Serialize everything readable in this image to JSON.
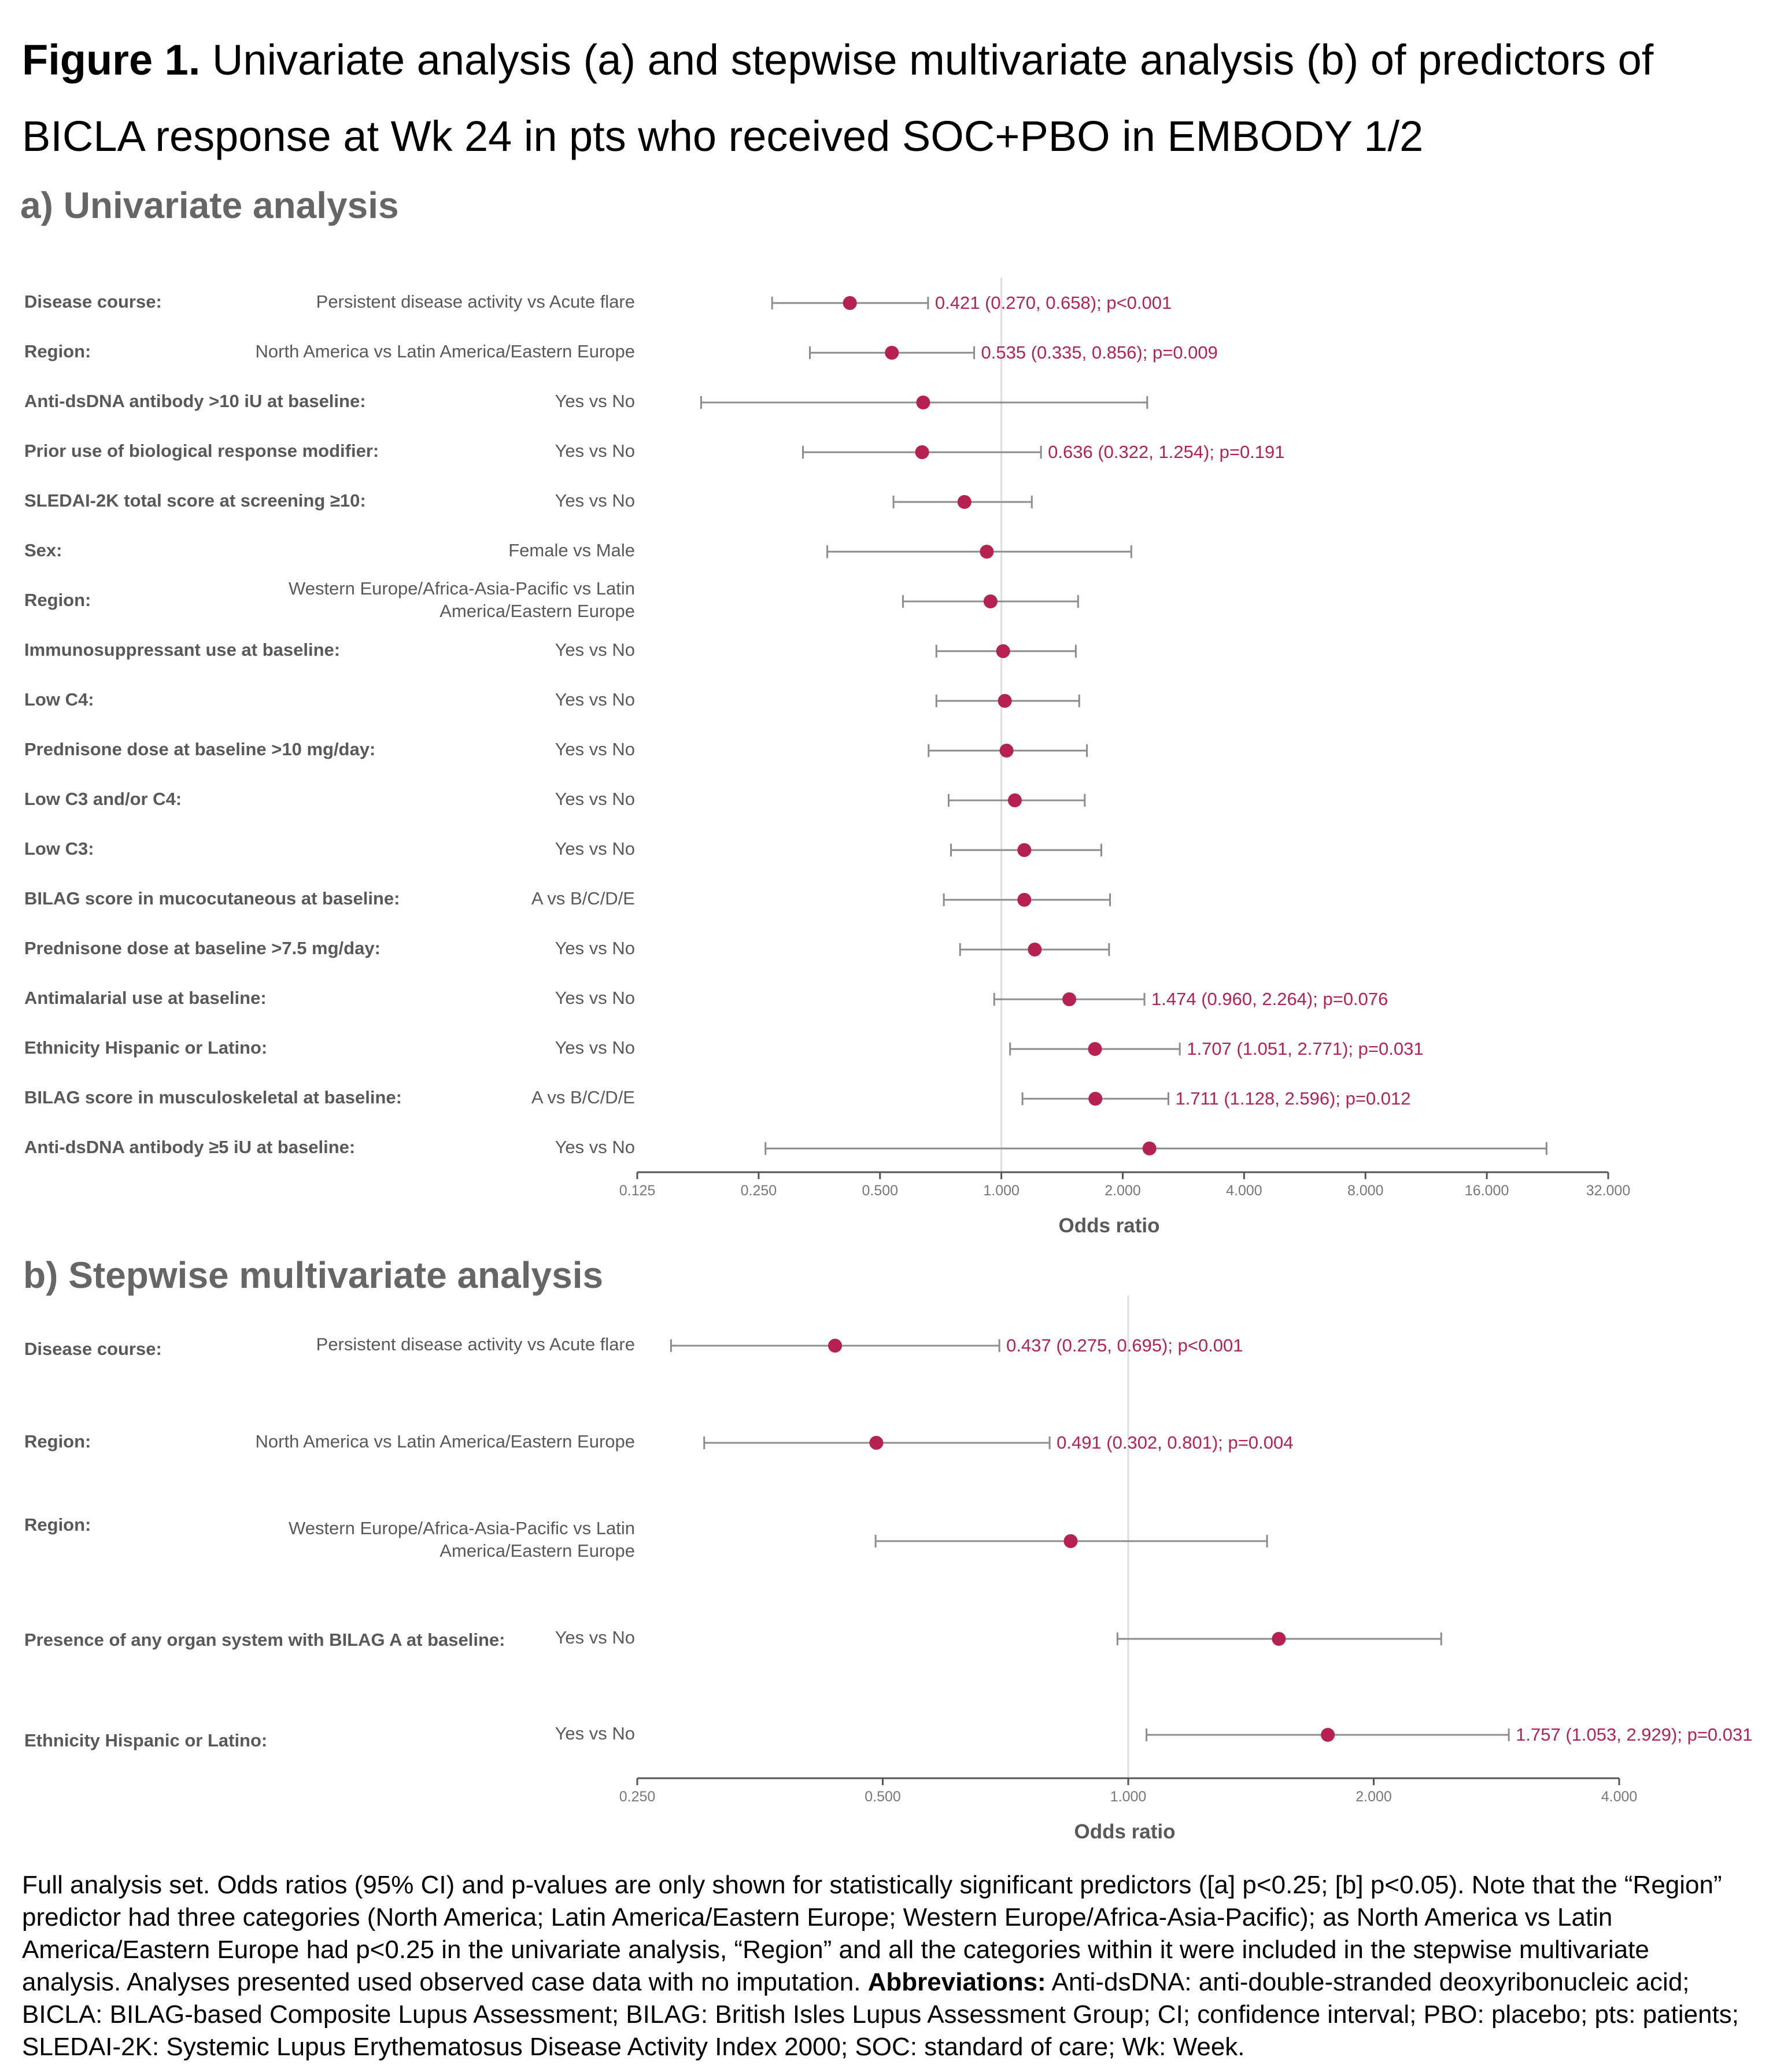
{
  "figure": {
    "label": "Figure 1.",
    "caption": "Univariate analysis (a) and stepwise multivariate analysis (b) of predictors of BICLA response at Wk 24 in pts who received SOC+PBO in EMBODY 1/2"
  },
  "colors": {
    "point": "#B5224F",
    "annotation": "#B5224F",
    "whisker": "#8C8C8C",
    "reference": "#DDDDDD",
    "axis": "#555555",
    "label": "#595959"
  },
  "chart_data": [
    {
      "type": "forest",
      "title": "a) Univariate analysis",
      "xlabel": "Odds ratio",
      "xscale": "log2",
      "xlim": [
        0.125,
        32
      ],
      "xticks": [
        "0.125",
        "0.250",
        "0.500",
        "1.000",
        "2.000",
        "4.000",
        "8.000",
        "16.000",
        "32.000"
      ],
      "reference_line": 1,
      "rows": [
        {
          "label": "Disease course:",
          "comparison": "Persistent disease activity vs Acute flare",
          "or": 0.421,
          "lower": 0.27,
          "upper": 0.658,
          "annotation": "0.421 (0.270, 0.658); p<0.001"
        },
        {
          "label": "Region:",
          "comparison": "North America vs Latin America/Eastern Europe",
          "or": 0.535,
          "lower": 0.335,
          "upper": 0.856,
          "annotation": "0.535 (0.335, 0.856); p=0.009"
        },
        {
          "label": "Anti-dsDNA antibody >10 iU at baseline:",
          "comparison": "Yes vs No",
          "or": 0.64,
          "lower": 0.18,
          "upper": 2.3,
          "annotation": ""
        },
        {
          "label": "Prior use of biological response modifier:",
          "comparison": "Yes vs No",
          "or": 0.636,
          "lower": 0.322,
          "upper": 1.254,
          "annotation": "0.636 (0.322, 1.254); p=0.191"
        },
        {
          "label": "SLEDAI-2K total score at screening ≥10:",
          "comparison": "Yes vs No",
          "or": 0.81,
          "lower": 0.54,
          "upper": 1.19,
          "annotation": ""
        },
        {
          "label": "Sex:",
          "comparison": "Female vs Male",
          "or": 0.92,
          "lower": 0.37,
          "upper": 2.1,
          "annotation": ""
        },
        {
          "label": "Region:",
          "comparison": "Western Europe/Africa-Asia-Pacific vs Latin\nAmerica/Eastern Europe",
          "or": 0.94,
          "lower": 0.57,
          "upper": 1.55,
          "annotation": ""
        },
        {
          "label": "Immunosuppressant use at baseline:",
          "comparison": "Yes vs No",
          "or": 1.01,
          "lower": 0.69,
          "upper": 1.53,
          "annotation": ""
        },
        {
          "label": "Low C4:",
          "comparison": "Yes vs No",
          "or": 1.02,
          "lower": 0.69,
          "upper": 1.56,
          "annotation": ""
        },
        {
          "label": "Prednisone dose at baseline >10 mg/day:",
          "comparison": "Yes vs No",
          "or": 1.03,
          "lower": 0.66,
          "upper": 1.63,
          "annotation": ""
        },
        {
          "label": "Low C3 and/or C4:",
          "comparison": "Yes vs No",
          "or": 1.08,
          "lower": 0.74,
          "upper": 1.61,
          "annotation": ""
        },
        {
          "label": "Low C3:",
          "comparison": "Yes vs No",
          "or": 1.14,
          "lower": 0.75,
          "upper": 1.77,
          "annotation": ""
        },
        {
          "label": "BILAG score in mucocutaneous at baseline:",
          "comparison": "A vs B/C/D/E",
          "or": 1.14,
          "lower": 0.72,
          "upper": 1.86,
          "annotation": ""
        },
        {
          "label": "Prednisone dose at baseline >7.5 mg/day:",
          "comparison": "Yes vs No",
          "or": 1.21,
          "lower": 0.79,
          "upper": 1.85,
          "annotation": ""
        },
        {
          "label": "Antimalarial use at baseline:",
          "comparison": "Yes vs No",
          "or": 1.474,
          "lower": 0.96,
          "upper": 2.264,
          "annotation": "1.474 (0.960, 2.264); p=0.076"
        },
        {
          "label": "Ethnicity Hispanic or Latino:",
          "comparison": "Yes vs No",
          "or": 1.707,
          "lower": 1.051,
          "upper": 2.771,
          "annotation": "1.707 (1.051, 2.771); p=0.031"
        },
        {
          "label": "BILAG score in musculoskeletal at baseline:",
          "comparison": "A vs B/C/D/E",
          "or": 1.711,
          "lower": 1.128,
          "upper": 2.596,
          "annotation": "1.711 (1.128, 2.596); p=0.012"
        },
        {
          "label": "Anti-dsDNA antibody ≥5 iU at baseline:",
          "comparison": "Yes vs No",
          "or": 2.33,
          "lower": 0.26,
          "upper": 22.5,
          "annotation": ""
        }
      ]
    },
    {
      "type": "forest",
      "title": "b) Stepwise multivariate analysis",
      "xlabel": "Odds ratio",
      "xscale": "log2",
      "xlim": [
        0.25,
        4
      ],
      "xticks": [
        "0.250",
        "0.500",
        "1.000",
        "2.000",
        "4.000"
      ],
      "reference_line": 1,
      "rows": [
        {
          "label": "Disease course:",
          "comparison": "Persistent disease activity vs Acute flare",
          "or": 0.437,
          "lower": 0.275,
          "upper": 0.695,
          "annotation": "0.437 (0.275, 0.695); p<0.001"
        },
        {
          "label": "Region:",
          "comparison": "North America vs Latin America/Eastern Europe",
          "or": 0.491,
          "lower": 0.302,
          "upper": 0.801,
          "annotation": "0.491 (0.302, 0.801); p=0.004"
        },
        {
          "label": "Region:",
          "comparison": "Western Europe/Africa-Asia-Pacific vs Latin\nAmerica/Eastern Europe",
          "or": 0.85,
          "lower": 0.49,
          "upper": 1.48,
          "annotation": ""
        },
        {
          "label": "Presence of any organ system with BILAG A at baseline:",
          "comparison": "Yes vs No",
          "or": 1.53,
          "lower": 0.97,
          "upper": 2.42,
          "annotation": ""
        },
        {
          "label": "Ethnicity Hispanic or Latino:",
          "comparison": "Yes vs No",
          "or": 1.757,
          "lower": 1.053,
          "upper": 2.929,
          "annotation": "1.757 (1.053, 2.929); p=0.031"
        }
      ]
    }
  ],
  "footnote": {
    "text_before": "Full analysis set. Odds ratios (95% CI) and p-values are only shown for statistically significant predictors ([a] p<0.25; [b] p<0.05). Note that the “Region” predictor had three categories (North America; Latin America/Eastern Europe; Western Europe/Africa-Asia-Pacific); as North America vs Latin America/Eastern Europe had p<0.25 in the univariate analysis, “Region” and all the categories within it were included in the stepwise multivariate analysis. Analyses presented used observed case data with no imputation. ",
    "bold_label": "Abbreviations:",
    "text_after": " Anti-dsDNA: anti-double-stranded deoxyribonucleic acid; BICLA: BILAG-based Composite Lupus Assessment; BILAG: British Isles Lupus Assessment Group; CI; confidence interval; PBO: placebo; pts: patients; SLEDAI-2K: Systemic Lupus Erythematosus Disease Activity Index 2000; SOC: standard of care; Wk: Week."
  }
}
